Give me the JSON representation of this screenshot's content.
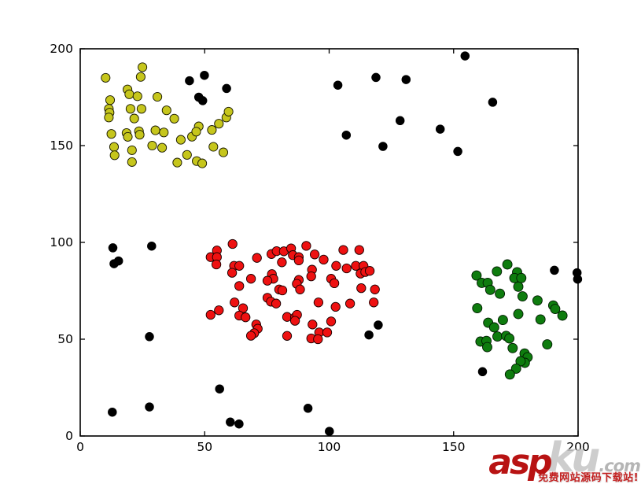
{
  "figure": {
    "background": "#ffffff"
  },
  "chart_data": {
    "type": "scatter",
    "title": "",
    "xlabel": "",
    "ylabel": "",
    "xlim": [
      0,
      200
    ],
    "ylim": [
      0,
      200
    ],
    "xticks": [
      "0",
      "50",
      "100",
      "150",
      "200"
    ],
    "yticks": [
      "0",
      "50",
      "100",
      "150",
      "200"
    ],
    "grid": false,
    "legend_position": "none",
    "series": [
      {
        "name": "cluster-yellow",
        "color": "#c6c61c",
        "edge_color": "#1a1a00",
        "marker_radius": 5.6,
        "points": [
          [
            10.2,
            185.0
          ],
          [
            25.0,
            190.5
          ],
          [
            24.3,
            185.5
          ],
          [
            19.0,
            179.0
          ],
          [
            19.7,
            176.5
          ],
          [
            23.0,
            175.5
          ],
          [
            12.0,
            173.5
          ],
          [
            31.0,
            175.2
          ],
          [
            11.5,
            169.0
          ],
          [
            11.8,
            167.0
          ],
          [
            20.2,
            169.0
          ],
          [
            24.6,
            169.0
          ],
          [
            11.5,
            164.5
          ],
          [
            21.7,
            164.0
          ],
          [
            34.7,
            168.2
          ],
          [
            37.8,
            163.9
          ],
          [
            12.5,
            156.0
          ],
          [
            18.6,
            156.5
          ],
          [
            19.1,
            154.5
          ],
          [
            23.6,
            157.4
          ],
          [
            23.9,
            155.6
          ],
          [
            30.2,
            157.9
          ],
          [
            33.6,
            156.8
          ],
          [
            13.6,
            149.3
          ],
          [
            13.8,
            145.0
          ],
          [
            20.8,
            147.6
          ],
          [
            20.8,
            141.5
          ],
          [
            28.9,
            150.0
          ],
          [
            32.9,
            148.9
          ],
          [
            40.4,
            153.0
          ],
          [
            44.9,
            154.6
          ],
          [
            42.9,
            145.2
          ],
          [
            39.0,
            141.2
          ],
          [
            46.8,
            142.0
          ],
          [
            49.0,
            140.8
          ],
          [
            47.6,
            159.9
          ],
          [
            46.6,
            157.2
          ],
          [
            52.9,
            158.1
          ],
          [
            55.7,
            161.3
          ],
          [
            58.7,
            164.5
          ],
          [
            59.6,
            167.5
          ],
          [
            53.5,
            149.4
          ],
          [
            57.5,
            146.5
          ]
        ]
      },
      {
        "name": "cluster-red",
        "color": "#ee1111",
        "edge_color": "#1a0000",
        "marker_radius": 5.7,
        "points": [
          [
            61.2,
            99.2
          ],
          [
            54.9,
            95.8
          ],
          [
            52.4,
            92.4
          ],
          [
            54.9,
            92.4
          ],
          [
            54.7,
            88.6
          ],
          [
            61.8,
            87.9
          ],
          [
            63.9,
            87.9
          ],
          [
            61.0,
            84.3
          ],
          [
            71.0,
            92.0
          ],
          [
            76.8,
            94.0
          ],
          [
            78.9,
            95.5
          ],
          [
            81.8,
            95.4
          ],
          [
            84.7,
            96.9
          ],
          [
            85.4,
            93.4
          ],
          [
            81.0,
            89.7
          ],
          [
            77.0,
            83.6
          ],
          [
            77.6,
            81.2
          ],
          [
            75.2,
            80.2
          ],
          [
            68.6,
            81.2
          ],
          [
            63.9,
            77.5
          ],
          [
            79.9,
            75.7
          ],
          [
            81.2,
            75.2
          ],
          [
            62.0,
            69.0
          ],
          [
            75.2,
            71.4
          ],
          [
            76.6,
            69.4
          ],
          [
            78.7,
            68.4
          ],
          [
            52.4,
            62.6
          ],
          [
            55.7,
            64.9
          ],
          [
            65.4,
            66.0
          ],
          [
            63.9,
            62.2
          ],
          [
            66.4,
            61.3
          ],
          [
            70.7,
            57.6
          ],
          [
            71.3,
            55.4
          ],
          [
            69.9,
            53.1
          ],
          [
            68.6,
            51.8
          ],
          [
            83.1,
            61.5
          ],
          [
            86.3,
            61.3
          ],
          [
            83.1,
            51.7
          ],
          [
            90.8,
            98.2
          ],
          [
            94.2,
            93.8
          ],
          [
            87.8,
            92.4
          ],
          [
            87.8,
            90.7
          ],
          [
            97.8,
            91.1
          ],
          [
            105.7,
            96.1
          ],
          [
            112.1,
            96.1
          ],
          [
            102.8,
            87.9
          ],
          [
            107.0,
            86.6
          ],
          [
            110.7,
            87.9
          ],
          [
            113.8,
            87.9
          ],
          [
            112.6,
            83.9
          ],
          [
            114.5,
            84.7
          ],
          [
            116.3,
            85.3
          ],
          [
            93.1,
            85.9
          ],
          [
            92.8,
            82.5
          ],
          [
            100.8,
            81.2
          ],
          [
            102.1,
            78.9
          ],
          [
            87.8,
            80.6
          ],
          [
            87.0,
            78.6
          ],
          [
            88.3,
            75.7
          ],
          [
            112.9,
            76.4
          ],
          [
            118.4,
            75.7
          ],
          [
            95.7,
            69.0
          ],
          [
            102.6,
            66.7
          ],
          [
            108.4,
            68.4
          ],
          [
            117.9,
            69.0
          ],
          [
            87.1,
            62.6
          ],
          [
            86.3,
            59.5
          ],
          [
            93.3,
            57.6
          ],
          [
            100.8,
            59.2
          ],
          [
            96.0,
            53.5
          ],
          [
            99.2,
            53.5
          ],
          [
            92.8,
            50.4
          ],
          [
            95.5,
            50.0
          ]
        ]
      },
      {
        "name": "cluster-green",
        "color": "#0e7c0e",
        "edge_color": "#001a00",
        "marker_radius": 6.0,
        "points": [
          [
            171.6,
            88.6
          ],
          [
            159.2,
            82.9
          ],
          [
            167.4,
            85.0
          ],
          [
            175.5,
            84.6
          ],
          [
            174.4,
            81.6
          ],
          [
            177.2,
            81.6
          ],
          [
            161.3,
            79.1
          ],
          [
            163.7,
            79.1
          ],
          [
            164.7,
            75.5
          ],
          [
            168.6,
            73.5
          ],
          [
            176.0,
            77.1
          ],
          [
            177.7,
            72.1
          ],
          [
            183.7,
            70.0
          ],
          [
            159.5,
            66.0
          ],
          [
            190.0,
            67.4
          ],
          [
            190.8,
            65.6
          ],
          [
            193.7,
            62.2
          ],
          [
            176.0,
            63.0
          ],
          [
            184.9,
            60.2
          ],
          [
            169.8,
            59.9
          ],
          [
            163.9,
            58.5
          ],
          [
            166.3,
            56.1
          ],
          [
            167.6,
            51.4
          ],
          [
            171.1,
            51.7
          ],
          [
            172.4,
            50.4
          ],
          [
            160.8,
            48.8
          ],
          [
            163.2,
            49.1
          ],
          [
            163.5,
            45.9
          ],
          [
            173.7,
            45.4
          ],
          [
            187.6,
            47.3
          ],
          [
            178.5,
            42.6
          ],
          [
            179.7,
            40.7
          ],
          [
            178.6,
            37.8
          ],
          [
            176.9,
            38.6
          ],
          [
            175.1,
            34.8
          ],
          [
            172.6,
            31.8
          ]
        ]
      },
      {
        "name": "noise-black",
        "color": "#000000",
        "edge_color": "#000000",
        "marker_radius": 5.3,
        "points": [
          [
            43.9,
            183.5
          ],
          [
            49.9,
            186.3
          ],
          [
            58.8,
            179.5
          ],
          [
            47.6,
            175.0
          ],
          [
            49.2,
            173.2
          ],
          [
            103.5,
            181.2
          ],
          [
            118.8,
            185.2
          ],
          [
            130.9,
            184.1
          ],
          [
            154.6,
            196.3
          ],
          [
            165.7,
            172.4
          ],
          [
            128.5,
            162.9
          ],
          [
            106.9,
            155.4
          ],
          [
            121.6,
            149.6
          ],
          [
            144.6,
            158.5
          ],
          [
            151.7,
            147.0
          ],
          [
            13.1,
            97.2
          ],
          [
            28.7,
            98.1
          ],
          [
            13.6,
            89.0
          ],
          [
            15.4,
            90.4
          ],
          [
            27.8,
            51.3
          ],
          [
            12.9,
            12.3
          ],
          [
            27.8,
            15.0
          ],
          [
            56.0,
            24.3
          ],
          [
            60.3,
            7.2
          ],
          [
            63.8,
            6.2
          ],
          [
            91.5,
            14.3
          ],
          [
            100.1,
            2.4
          ],
          [
            119.7,
            57.3
          ],
          [
            116.0,
            52.2
          ],
          [
            161.6,
            33.2
          ],
          [
            190.5,
            85.6
          ],
          [
            199.6,
            84.3
          ],
          [
            199.8,
            81.0
          ]
        ]
      }
    ]
  },
  "watermark": {
    "part1": "asp",
    "part2": "ku",
    "part3": ".com",
    "slogan": "免费网站源码下载站!",
    "accent_color": "#b81313"
  }
}
